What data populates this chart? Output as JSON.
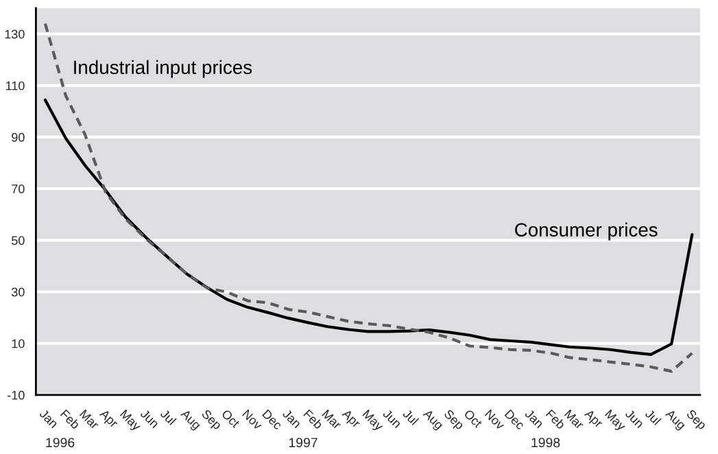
{
  "chart_data": {
    "type": "line",
    "x": [
      "1996-01",
      "1996-02",
      "1996-03",
      "1996-04",
      "1996-05",
      "1996-06",
      "1996-07",
      "1996-08",
      "1996-09",
      "1996-10",
      "1996-11",
      "1996-12",
      "1997-01",
      "1997-02",
      "1997-03",
      "1997-04",
      "1997-05",
      "1997-06",
      "1997-07",
      "1997-08",
      "1997-09",
      "1997-10",
      "1997-11",
      "1997-12",
      "1998-01",
      "1998-02",
      "1998-03",
      "1998-04",
      "1998-05",
      "1998-06",
      "1998-07",
      "1998-08",
      "1998-09"
    ],
    "series": [
      {
        "name": "Industrial input prices",
        "color": "#5a5a5a",
        "line_style": "dashed",
        "values": [
          134,
          106,
          91,
          68.6,
          58.3,
          50.5,
          44,
          37,
          31.5,
          29.9,
          26.5,
          25.8,
          23.2,
          22.1,
          20.4,
          18.6,
          17.6,
          16.9,
          15.6,
          14.3,
          12.1,
          9.0,
          8.4,
          7.6,
          7.3,
          6.2,
          4.5,
          3.7,
          2.8,
          1.9,
          0.9,
          -0.8,
          6.2
        ]
      },
      {
        "name": "Consumer prices",
        "color": "#000000",
        "line_style": "solid",
        "values": [
          104.4,
          89.5,
          79,
          69.4,
          59,
          51,
          44,
          37,
          31.6,
          27,
          24,
          22,
          19.8,
          18,
          16.5,
          15.4,
          14.6,
          14.6,
          14.8,
          15.2,
          14.3,
          13.2,
          11.5,
          11.0,
          10.5,
          9.5,
          8.6,
          8.2,
          7.6,
          6.5,
          5.7,
          9.8,
          52.2
        ]
      }
    ],
    "xlim": [
      "1995-12-18",
      "1998-09-13"
    ],
    "xticks": [
      {
        "value": "1996-01",
        "label": "Jan"
      },
      {
        "value": "1996-02",
        "label": "Feb"
      },
      {
        "value": "1996-03",
        "label": "Mar"
      },
      {
        "value": "1996-04",
        "label": "Apr"
      },
      {
        "value": "1996-05",
        "label": "May"
      },
      {
        "value": "1996-06",
        "label": "Jun"
      },
      {
        "value": "1996-07",
        "label": "Jul"
      },
      {
        "value": "1996-08",
        "label": "Aug"
      },
      {
        "value": "1996-09",
        "label": "Sep"
      },
      {
        "value": "1996-10",
        "label": "Oct"
      },
      {
        "value": "1996-11",
        "label": "Nov"
      },
      {
        "value": "1996-12",
        "label": "Dec"
      },
      {
        "value": "1997-01",
        "label": "Jan"
      },
      {
        "value": "1997-02",
        "label": "Feb"
      },
      {
        "value": "1997-03",
        "label": "Mar"
      },
      {
        "value": "1997-04",
        "label": "Apr"
      },
      {
        "value": "1997-05",
        "label": "May"
      },
      {
        "value": "1997-06",
        "label": "Jun"
      },
      {
        "value": "1997-07",
        "label": "Jul"
      },
      {
        "value": "1997-08",
        "label": "Aug"
      },
      {
        "value": "1997-09",
        "label": "Sep"
      },
      {
        "value": "1997-10",
        "label": "Oct"
      },
      {
        "value": "1997-11",
        "label": "Nov"
      },
      {
        "value": "1997-12",
        "label": "Dec"
      },
      {
        "value": "1998-01",
        "label": "Jan"
      },
      {
        "value": "1998-02",
        "label": "Feb"
      },
      {
        "value": "1998-03",
        "label": "Mar"
      },
      {
        "value": "1998-04",
        "label": "Apr"
      },
      {
        "value": "1998-05",
        "label": "May"
      },
      {
        "value": "1998-06",
        "label": "Jun"
      },
      {
        "value": "1998-07",
        "label": "Jul"
      },
      {
        "value": "1998-08",
        "label": "Aug"
      },
      {
        "value": "1998-09",
        "label": "Sep"
      }
    ],
    "ylim": [
      -10,
      140
    ],
    "yticks": [
      -10,
      10,
      30,
      50,
      70,
      90,
      110,
      130
    ],
    "grid": "y",
    "legend": false,
    "x2lim": [
      "1996-01",
      "1998-01"
    ],
    "x2ticks": [
      {
        "value": "1996-01",
        "label": "1996"
      },
      {
        "value": "1997-01",
        "label": "1997"
      },
      {
        "value": "1998-01",
        "label": "1998"
      }
    ]
  }
}
